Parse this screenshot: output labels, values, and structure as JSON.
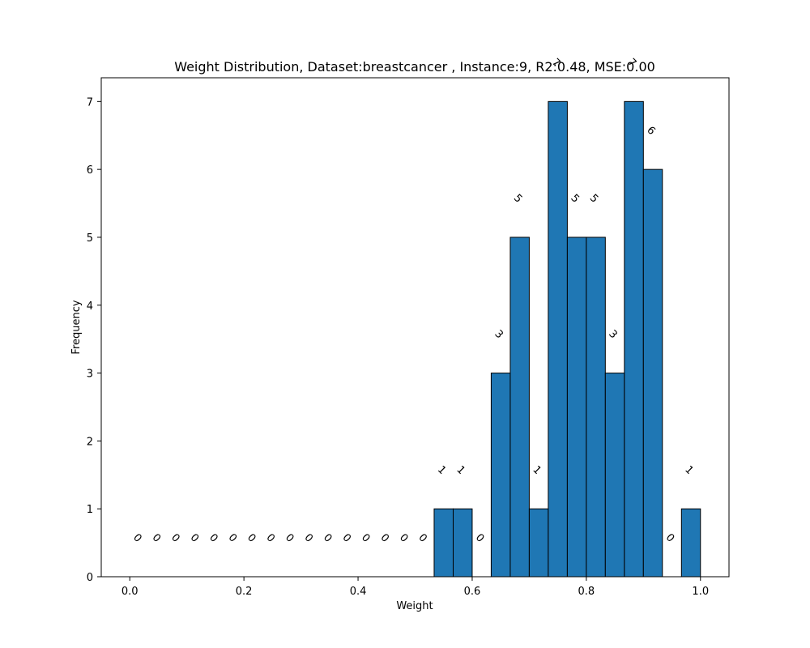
{
  "chart_data": {
    "type": "bar",
    "title": "Weight Distribution, Dataset:breastcancer , Instance:9, R2:0.48, MSE:0.00",
    "xlabel": "Weight",
    "ylabel": "Frequency",
    "xlim": [
      -0.05,
      1.05
    ],
    "ylim": [
      0,
      7.35
    ],
    "xticks": [
      "0.0",
      "0.2",
      "0.4",
      "0.6",
      "0.8",
      "1.0"
    ],
    "yticks": [
      "0",
      "1",
      "2",
      "3",
      "4",
      "5",
      "6",
      "7"
    ],
    "bin_edges": [
      0.0,
      0.0333,
      0.0667,
      0.1,
      0.1333,
      0.1667,
      0.2,
      0.2333,
      0.2667,
      0.3,
      0.3333,
      0.3667,
      0.4,
      0.4333,
      0.4667,
      0.5,
      0.5333,
      0.5667,
      0.6,
      0.6333,
      0.6667,
      0.7,
      0.7333,
      0.7667,
      0.8,
      0.8333,
      0.8667,
      0.9,
      0.9333,
      0.9667,
      1.0
    ],
    "values": [
      0,
      0,
      0,
      0,
      0,
      0,
      0,
      0,
      0,
      0,
      0,
      0,
      0,
      0,
      0,
      0,
      1,
      1,
      0,
      3,
      5,
      1,
      7,
      5,
      5,
      3,
      7,
      6,
      0,
      1
    ],
    "bar_color": "#1f77b4",
    "edge_color": "#000000",
    "grid": false
  }
}
